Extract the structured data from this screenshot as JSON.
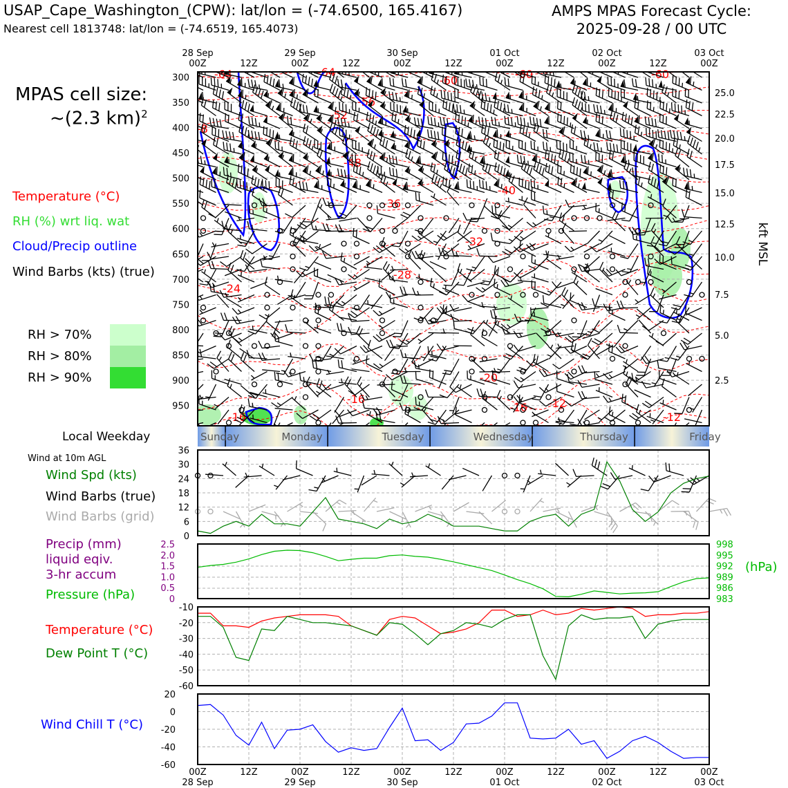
{
  "header": {
    "station": "USAP_Cape_Washington_(CPW): lat/lon = (-74.6500, 165.4167)",
    "nearest_cell": "Nearest cell 1813748: lat/lon = (-74.6519, 165.4073)",
    "forecast_title": "AMPS MPAS Forecast Cycle:",
    "forecast_cycle": "2025-09-28 / 00 UTC"
  },
  "sidebar": {
    "cell_size_label": "MPAS cell size:",
    "cell_size_value": "~(2.3 km)",
    "cell_size_exp": "2",
    "legend_temperature": "Temperature (°C)",
    "legend_rh": "RH (%) wrt liq. wat",
    "legend_cloud": "Cloud/Precip outline",
    "legend_wind": "Wind Barbs (kts) (true)",
    "rh70": "RH > 70%",
    "rh80": "RH > 80%",
    "rh90": "RH > 90%",
    "weekday_title": "Local Weekday",
    "wind10m_title": "Wind at 10m AGL",
    "wind_spd_label": "Wind Spd (kts)",
    "wind_barbs_true_label": "Wind Barbs (true)",
    "wind_barbs_grid_label": "Wind Barbs (grid)",
    "precip_label1": "Precip (mm)",
    "precip_label2": "liquid eqiv.",
    "precip_label3": "3-hr accum",
    "pressure_label": "Pressure (hPa)",
    "temp_label": "Temperature (°C)",
    "dew_label": "Dew Point T (°C)",
    "windchill_label": "Wind Chill T (°C)"
  },
  "colors": {
    "temperature": "#ff0000",
    "rh_label": "#33dd33",
    "cloud": "#0000ff",
    "wind_spd": "#008000",
    "wind_grid": "#aaaaaa",
    "precip": "#800080",
    "pressure": "#00bb00",
    "dew": "#008000",
    "windchill": "#0000ff",
    "rh70": "#ccffcc",
    "rh80": "#a3eea3",
    "rh90": "#33dd33"
  },
  "chart_data": [
    {
      "type": "heatmap",
      "name": "vertical-profile",
      "x_top_labels": [
        [
          "28 Sep",
          "00Z"
        ],
        [
          "",
          "12Z"
        ],
        [
          "29 Sep",
          "00Z"
        ],
        [
          "",
          "12Z"
        ],
        [
          "30 Sep",
          "00Z"
        ],
        [
          "",
          "12Z"
        ],
        [
          "01 Oct",
          "00Z"
        ],
        [
          "",
          "12Z"
        ],
        [
          "02 Oct",
          "00Z"
        ],
        [
          "",
          "12Z"
        ],
        [
          "03 Oct",
          "00Z"
        ]
      ],
      "y_left_label_hpa": [
        "300",
        "350",
        "400",
        "450",
        "500",
        "550",
        "600",
        "650",
        "700",
        "750",
        "800",
        "850",
        "900",
        "950"
      ],
      "y_right_label_kft": [
        "25.0",
        "22.5",
        "20.0",
        "17.5",
        "15.0",
        "12.5",
        "10.0",
        "7.5",
        "5.0",
        "2.5"
      ],
      "y_right_title": "kft MSL",
      "temperature_contour_labels": [
        "-64",
        "-64",
        "-60",
        "-60",
        "-60",
        "-56",
        "-52",
        "-48",
        "-40",
        "-36",
        "-32",
        "-28",
        "-24",
        "-20",
        "-16",
        "-16",
        "-16",
        "-12",
        "-12",
        "-8"
      ]
    },
    {
      "type": "bar",
      "name": "local-weekday",
      "categories": [
        "Sunday",
        "Monday",
        "Tuesday",
        "Wednesday",
        "Thursday",
        "Friday"
      ]
    },
    {
      "type": "line",
      "name": "wind-speed",
      "x_hours": [
        0,
        3,
        6,
        9,
        12,
        15,
        18,
        21,
        24,
        27,
        30,
        33,
        36,
        39,
        42,
        45,
        48,
        51,
        54,
        57,
        60,
        63,
        66,
        69,
        72,
        75,
        78,
        81,
        84,
        87,
        90,
        93,
        96,
        99,
        102,
        105,
        108,
        111,
        114,
        117,
        120
      ],
      "series": [
        {
          "name": "Wind Spd (kts)",
          "values": [
            2,
            1,
            4,
            6,
            4,
            9,
            5,
            5,
            4,
            10,
            16,
            7,
            6,
            5,
            3,
            7,
            5,
            6,
            9,
            7,
            4,
            4,
            4,
            3,
            2,
            2,
            6,
            8,
            9,
            4,
            9,
            11,
            31,
            23,
            11,
            6,
            10,
            18,
            22,
            24,
            25
          ]
        }
      ],
      "ylim": [
        0,
        36
      ],
      "yticks": [
        "0",
        "6",
        "12",
        "18",
        "24",
        "30",
        "36"
      ]
    },
    {
      "type": "line",
      "name": "pressure",
      "x_hours": [
        0,
        3,
        6,
        9,
        12,
        15,
        18,
        21,
        24,
        27,
        30,
        33,
        36,
        39,
        42,
        45,
        48,
        51,
        54,
        57,
        60,
        63,
        66,
        69,
        72,
        75,
        78,
        81,
        84,
        87,
        90,
        93,
        96,
        99,
        102,
        105,
        108,
        111,
        114,
        117,
        120
      ],
      "series": [
        {
          "name": "Pressure (hPa)",
          "values": [
            991.6,
            992.1,
            992.4,
            993.0,
            993.9,
            995.1,
            996.0,
            996.3,
            996.2,
            995.6,
            994.6,
            993.4,
            993.8,
            994.1,
            994.1,
            994.8,
            995.0,
            994.6,
            994.4,
            993.8,
            993.1,
            992.3,
            991.5,
            990.7,
            989.5,
            988.2,
            987.1,
            985.7,
            983.6,
            983.5,
            984.2,
            985.1,
            984.7,
            984.3,
            984.5,
            984.6,
            984.9,
            986.3,
            987.6,
            988.5,
            988.7
          ]
        }
      ],
      "left_ticks": [
        "0",
        "0.5",
        "1.0",
        "1.5",
        "2.0",
        "2.5"
      ],
      "right_ticks": [
        "998",
        "995",
        "992",
        "989",
        "986",
        "983"
      ],
      "right_unit": "(hPa)",
      "ylim": [
        983,
        998
      ]
    },
    {
      "type": "line",
      "name": "temperature-dewpoint",
      "x_hours": [
        0,
        3,
        6,
        9,
        12,
        15,
        18,
        21,
        24,
        27,
        30,
        33,
        36,
        39,
        42,
        45,
        48,
        51,
        54,
        57,
        60,
        63,
        66,
        69,
        72,
        75,
        78,
        81,
        84,
        87,
        90,
        93,
        96,
        99,
        102,
        105,
        108,
        111,
        114,
        117,
        120
      ],
      "series": [
        {
          "name": "Temperature (°C)",
          "values": [
            -14,
            -14,
            -22,
            -22,
            -23,
            -19,
            -17,
            -16,
            -15,
            -15,
            -15,
            -16,
            -22,
            -25,
            -28,
            -18,
            -16,
            -17,
            -22,
            -27,
            -26,
            -24,
            -20,
            -12,
            -12,
            -16,
            -15,
            -12,
            -15,
            -14,
            -11,
            -12,
            -11,
            -10,
            -11,
            -16,
            -15,
            -15,
            -14,
            -14,
            -13
          ]
        },
        {
          "name": "Dew Point T (°C)",
          "values": [
            -16,
            -16,
            -23,
            -42,
            -44,
            -24,
            -25,
            -16,
            -18,
            -20,
            -20,
            -21,
            -22,
            -25,
            -28,
            -20,
            -21,
            -27,
            -34,
            -27,
            -25,
            -20,
            -21,
            -23,
            -18,
            -15,
            -15,
            -41,
            -56,
            -22,
            -15,
            -18,
            -17,
            -17,
            -16,
            -30,
            -21,
            -19,
            -18,
            -18,
            -18
          ]
        }
      ],
      "ylim": [
        -60,
        -10
      ],
      "yticks": [
        "-10",
        "-20",
        "-30",
        "-40",
        "-50",
        "-60"
      ]
    },
    {
      "type": "line",
      "name": "wind-chill",
      "x_hours": [
        0,
        3,
        6,
        9,
        12,
        15,
        18,
        21,
        24,
        27,
        30,
        33,
        36,
        39,
        42,
        45,
        48,
        51,
        54,
        57,
        60,
        63,
        66,
        69,
        72,
        75,
        78,
        81,
        84,
        87,
        90,
        93,
        96,
        99,
        102,
        105,
        108,
        111,
        114,
        117,
        120
      ],
      "series": [
        {
          "name": "Wind Chill T (°C)",
          "values": [
            7,
            8,
            -4,
            -27,
            -38,
            -12,
            -42,
            -21,
            -20,
            -15,
            -34,
            -46,
            -41,
            -44,
            -42,
            -18,
            4,
            -33,
            -32,
            -44,
            -35,
            -14,
            -13,
            -5,
            10,
            10,
            -30,
            -31,
            -30,
            -20,
            -37,
            -33,
            -53,
            -45,
            -33,
            -28,
            -35,
            -45,
            -53,
            -52,
            -52
          ]
        }
      ],
      "ylim": [
        -60,
        20
      ],
      "yticks": [
        "20",
        "0",
        "-20",
        "-40",
        "-60"
      ],
      "x_bottom_labels": [
        [
          "00Z",
          "28 Sep"
        ],
        [
          "12Z",
          ""
        ],
        [
          "00Z",
          "29 Sep"
        ],
        [
          "12Z",
          ""
        ],
        [
          "00Z",
          "30 Sep"
        ],
        [
          "12Z",
          ""
        ],
        [
          "00Z",
          "01 Oct"
        ],
        [
          "12Z",
          ""
        ],
        [
          "00Z",
          "02 Oct"
        ],
        [
          "12Z",
          ""
        ],
        [
          "00Z",
          "03 Oct"
        ]
      ]
    }
  ]
}
